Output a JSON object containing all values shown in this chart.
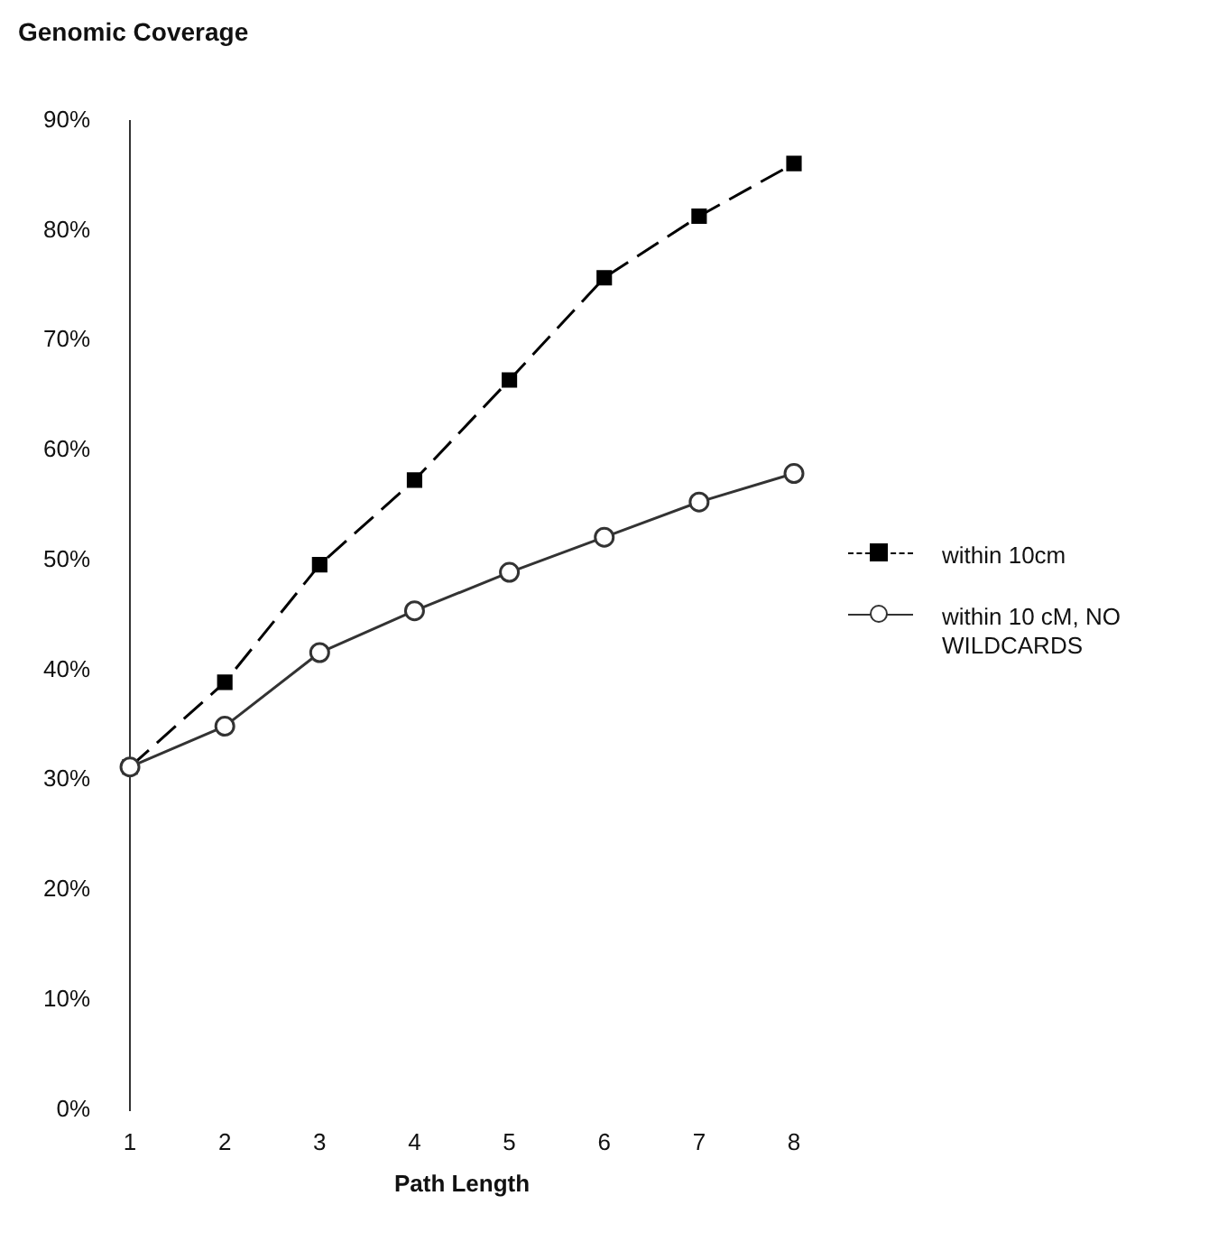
{
  "chart_data": {
    "type": "line",
    "title": "Genomic Coverage",
    "xlabel": "Path Length",
    "categories": [
      "1",
      "2",
      "3",
      "4",
      "5",
      "6",
      "7",
      "8"
    ],
    "series": [
      {
        "name": "within  10cm",
        "color": "#000000",
        "marker": "square",
        "line_style": "dashed",
        "values": [
          31.2,
          38.9,
          49.6,
          57.3,
          66.4,
          75.7,
          81.3,
          86.1
        ]
      },
      {
        "name": "within 10 cM, NO WILDCARDS",
        "color": "#333333",
        "marker": "circle",
        "line_style": "solid",
        "values": [
          31.2,
          34.9,
          41.6,
          45.4,
          48.9,
          52.1,
          55.3,
          57.9
        ]
      }
    ],
    "ylim": [
      0,
      90
    ],
    "yticks": [
      {
        "value": 0,
        "label": "0%"
      },
      {
        "value": 10,
        "label": "10%"
      },
      {
        "value": 20,
        "label": "20%"
      },
      {
        "value": 30,
        "label": "30%"
      },
      {
        "value": 40,
        "label": "40%"
      },
      {
        "value": 50,
        "label": "50%"
      },
      {
        "value": 60,
        "label": "60%"
      },
      {
        "value": 70,
        "label": "70%"
      },
      {
        "value": 80,
        "label": "80%"
      },
      {
        "value": 90,
        "label": "90%"
      }
    ],
    "grid": false,
    "legend": "right"
  }
}
